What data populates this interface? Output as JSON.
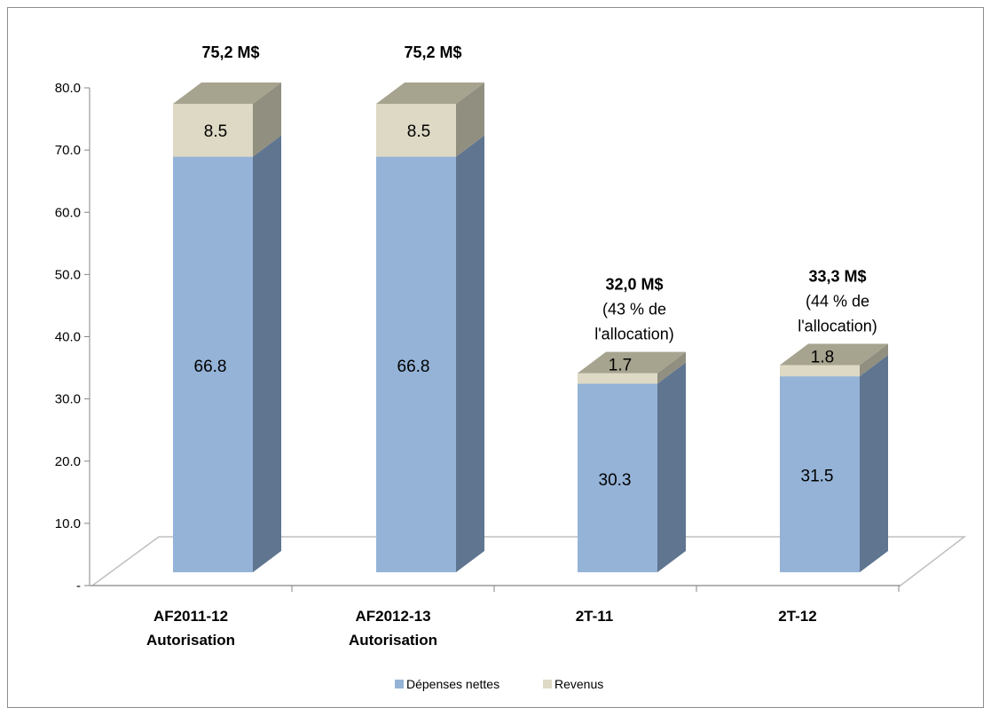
{
  "chart_data": {
    "type": "bar",
    "stacked": true,
    "three_d": true,
    "categories": [
      [
        "AF2011-12",
        "Autorisation"
      ],
      [
        "AF2012-13",
        "Autorisation"
      ],
      [
        "2T-11"
      ],
      [
        "2T-12"
      ]
    ],
    "series": [
      {
        "name": "Dépenses nettes",
        "values": [
          66.8,
          66.8,
          30.3,
          31.5
        ],
        "labels": [
          "66.8",
          "66.8",
          "30.3",
          "31.5"
        ],
        "color": "#95b3d7"
      },
      {
        "name": "Revenus",
        "values": [
          8.5,
          8.5,
          1.7,
          1.8
        ],
        "labels": [
          "8.5",
          "8.5",
          "1.7",
          "1.8"
        ],
        "color": "#ddd9c4"
      }
    ],
    "totals": [
      {
        "main": "75,2 M$",
        "sub": []
      },
      {
        "main": "75,2 M$",
        "sub": []
      },
      {
        "main": "32,0 M$",
        "sub": [
          "(43 % de",
          "l'allocation)"
        ]
      },
      {
        "main": "33,3 M$",
        "sub": [
          "(44 % de",
          "l'allocation)"
        ]
      }
    ],
    "ylim": [
      0,
      80
    ],
    "yticks": [
      "-",
      "10.0",
      "20.0",
      "30.0",
      "40.0",
      "50.0",
      "60.0",
      "70.0",
      "80.0"
    ],
    "ytick_values": [
      0,
      10,
      20,
      30,
      40,
      50,
      60,
      70,
      80
    ],
    "grid": false,
    "legend_position": "bottom",
    "colors": {
      "front_blue": "#95b3d7",
      "side_blue": "#5f7590",
      "front_beige": "#ddd9c4",
      "side_beige": "#918f80",
      "top_beige": "#a6a38f",
      "axis": "#868686",
      "floor": "#bfbfbf"
    }
  }
}
